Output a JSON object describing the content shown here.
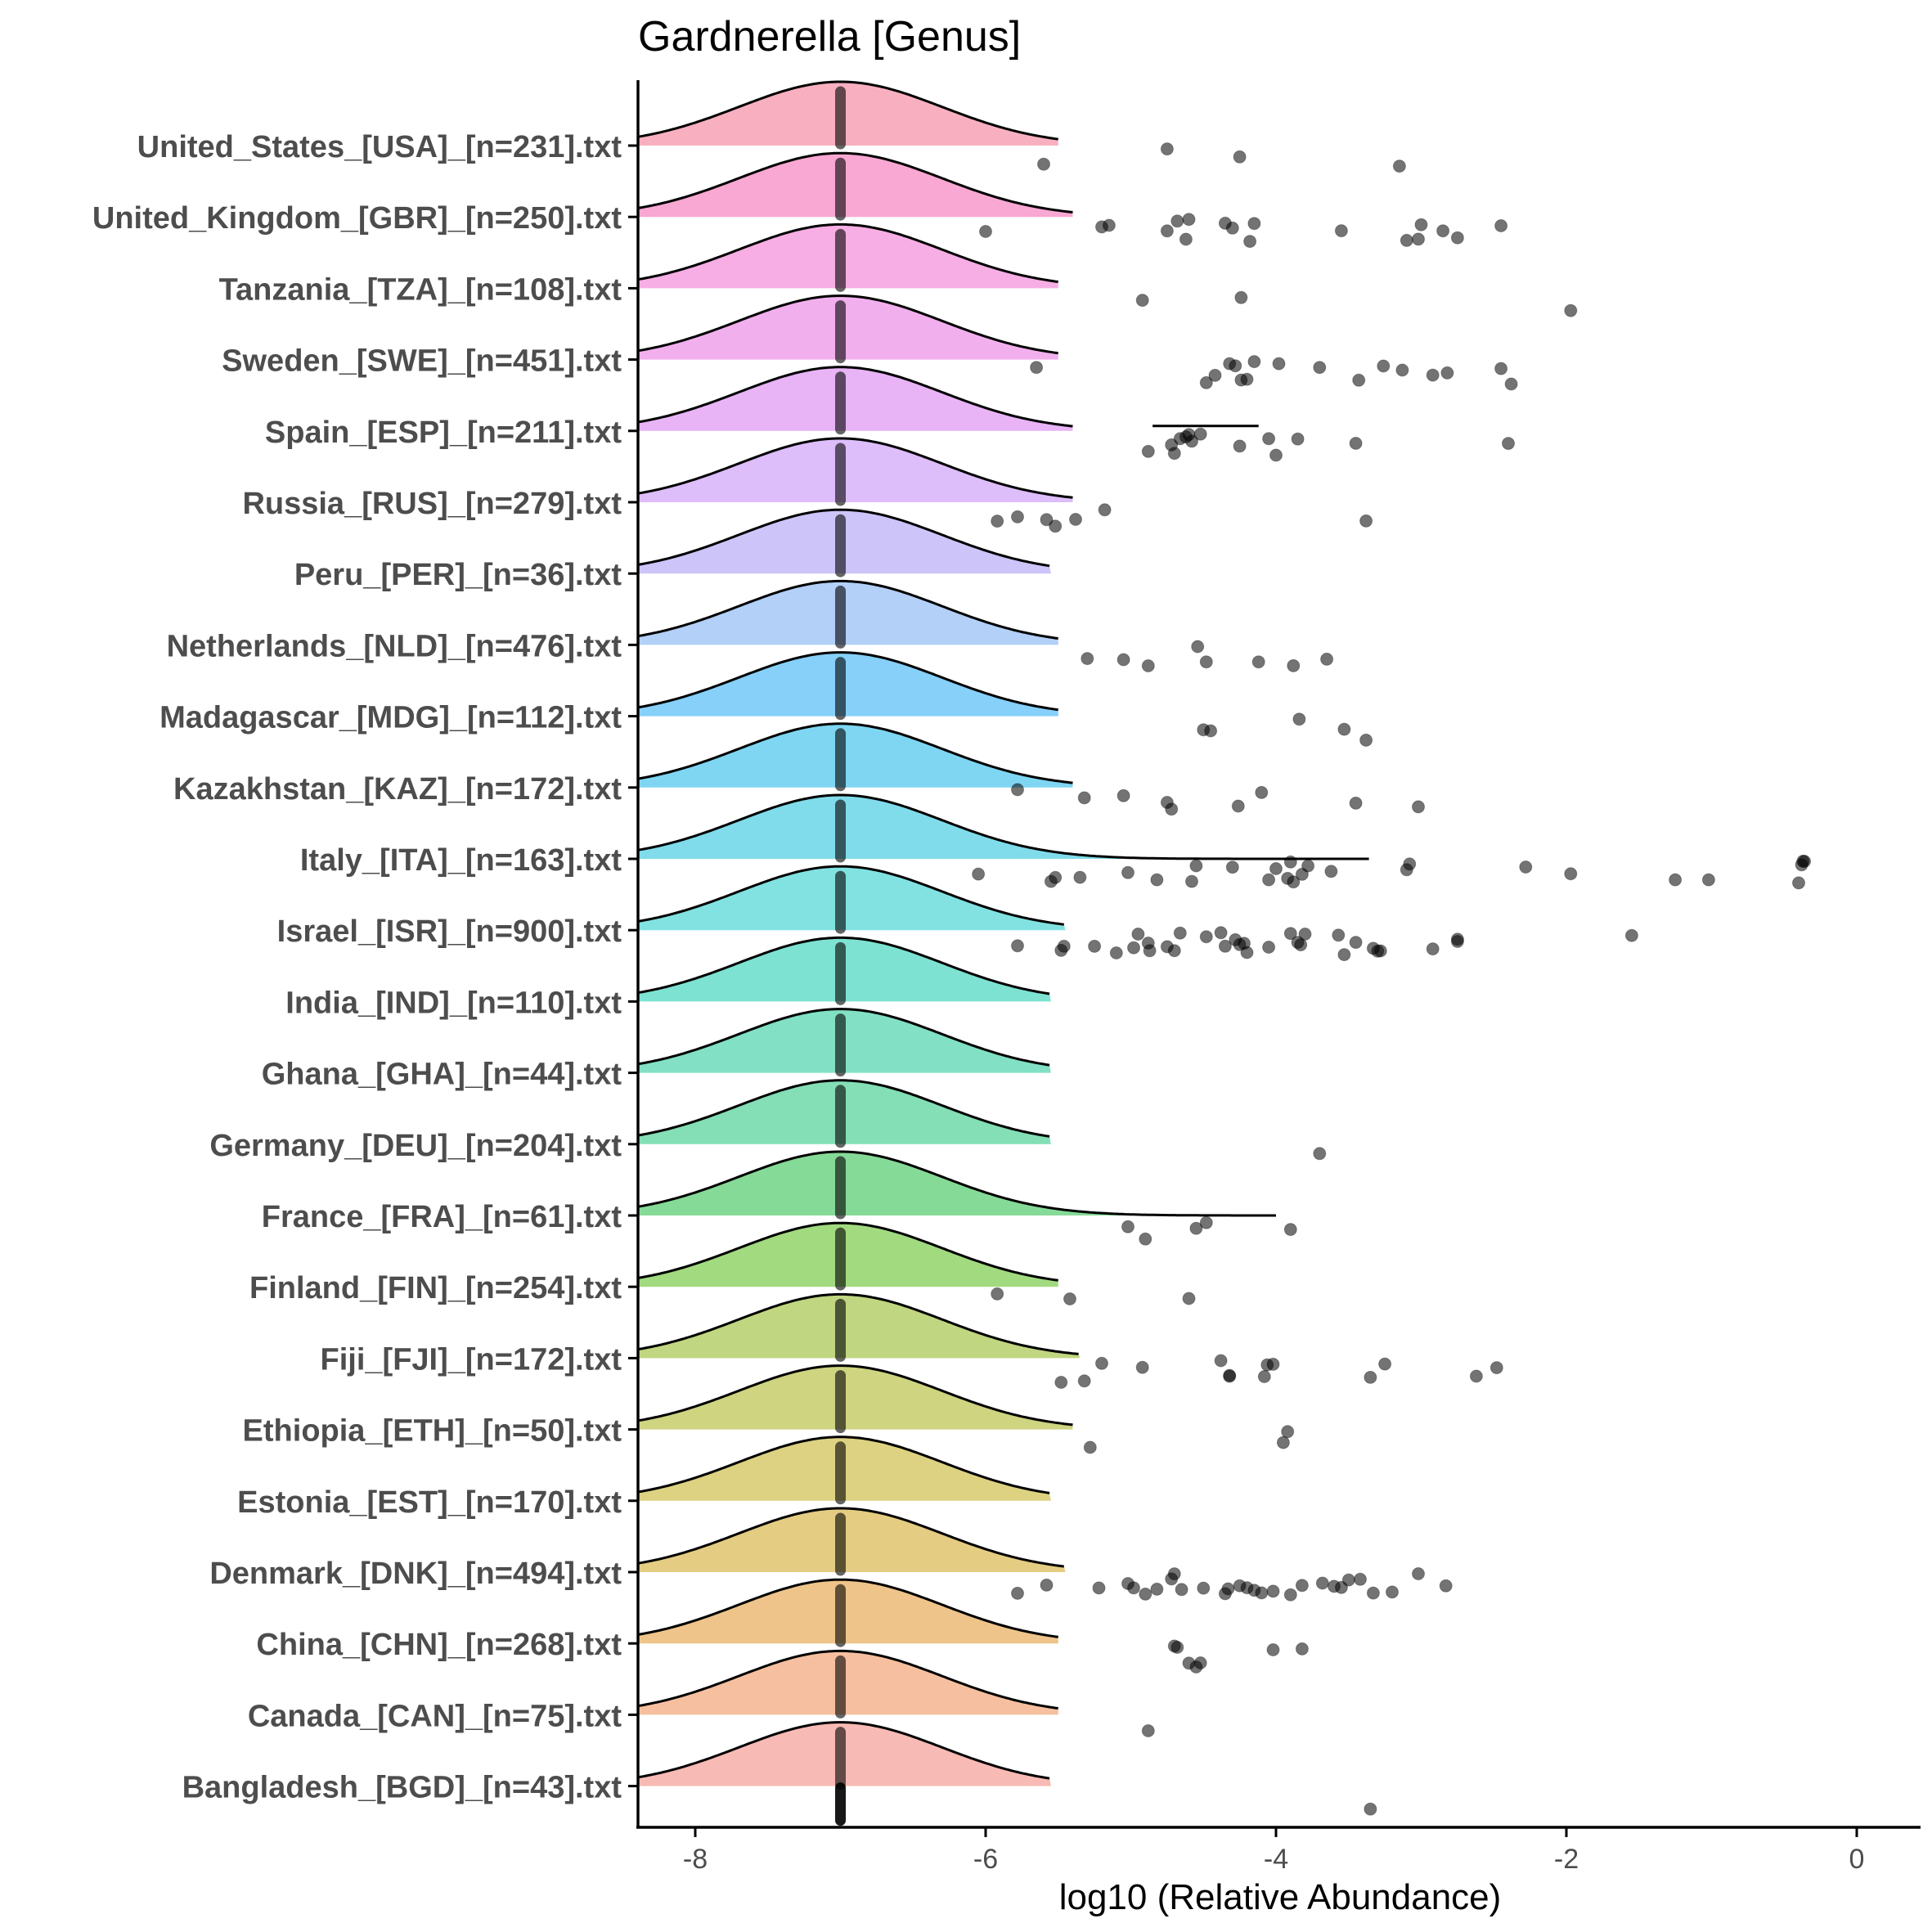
{
  "chart_data": {
    "type": "ridgeline",
    "title": "Gardnerella [Genus]",
    "xlabel": "log10 (Relative Abundance)",
    "ylabel": "",
    "xlim": [
      -8.4,
      0.4
    ],
    "x_ticks": [
      -8,
      -6,
      -4,
      -2,
      0
    ],
    "x_tick_labels": [
      "-8",
      "-6",
      "-4",
      "-2",
      "0"
    ],
    "grid": false,
    "legend": "none",
    "density_center": -7,
    "categories": [
      {
        "label": "United_States_[USA]_[n=231].txt",
        "color": "#F8B0C0",
        "tail_end": -5.5,
        "points": [
          -5.6,
          -4.75,
          -4.25,
          -3.15
        ]
      },
      {
        "label": "United_Kingdom_[GBR]_[n=250].txt",
        "color": "#F8A8D2",
        "tail_end": -5.4,
        "points": [
          -6.0,
          -5.2,
          -5.15,
          -4.75,
          -4.68,
          -4.6,
          -4.62,
          -4.35,
          -4.3,
          -4.18,
          -4.15,
          -3.55,
          -3.1,
          -3.02,
          -3.0,
          -2.85,
          -2.75,
          -2.45
        ]
      },
      {
        "label": "Tanzania_[TZA]_[n=108].txt",
        "color": "#F6AEE4",
        "tail_end": -5.5,
        "points": [
          -4.92,
          -4.24,
          -1.97
        ]
      },
      {
        "label": "Sweden_[SWE]_[n=451].txt",
        "color": "#F2AFEE",
        "tail_end": -5.5,
        "points": [
          -5.65,
          -4.48,
          -4.42,
          -4.32,
          -4.28,
          -4.24,
          -4.2,
          -4.15,
          -3.98,
          -3.7,
          -3.43,
          -3.26,
          -3.13,
          -2.92,
          -2.82,
          -2.45,
          -2.38
        ]
      },
      {
        "label": "Spain_[ESP]_[n=211].txt",
        "color": "#E8B4F6",
        "tail_end": -5.4,
        "points": [
          -4.88,
          -4.72,
          -4.7,
          -4.66,
          -4.62,
          -4.6,
          -4.58,
          -4.52,
          -4.25,
          -4.05,
          -4.0,
          -3.85,
          -3.45,
          -2.4
        ],
        "bar": [
          -4.85,
          -4.12
        ]
      },
      {
        "label": "Russia_[RUS]_[n=279].txt",
        "color": "#DDBDFA",
        "tail_end": -5.4,
        "points": [
          -5.92,
          -5.78,
          -5.58,
          -5.52,
          -5.38,
          -5.18,
          -3.38
        ]
      },
      {
        "label": "Peru_[PER]_[n=36].txt",
        "color": "#CDC5FA",
        "tail_end": -5.55,
        "points": []
      },
      {
        "label": "Netherlands_[NLD]_[n=476].txt",
        "color": "#B2D0F8",
        "tail_end": -5.5,
        "points": [
          -5.3,
          -5.05,
          -4.88,
          -4.54,
          -4.48,
          -4.12,
          -3.88,
          -3.65
        ]
      },
      {
        "label": "Madagascar_[MDG]_[n=112].txt",
        "color": "#86D0FA",
        "tail_end": -5.5,
        "points": [
          -4.5,
          -4.45,
          -3.84,
          -3.53,
          -3.38
        ]
      },
      {
        "label": "Kazakhstan_[KAZ]_[n=172].txt",
        "color": "#7ED6F2",
        "tail_end": -5.4,
        "points": [
          -5.78,
          -5.32,
          -5.05,
          -4.75,
          -4.72,
          -4.26,
          -4.1,
          -3.45,
          -3.02
        ]
      },
      {
        "label": "Italy_[ITA]_[n=163].txt",
        "color": "#80DCEA",
        "tail_end": -3.35,
        "points": [
          -6.05,
          -5.55,
          -5.52,
          -5.35,
          -5.02,
          -4.82,
          -4.58,
          -4.55,
          -4.3,
          -4.05,
          -4.0,
          -3.92,
          -3.9,
          -3.88,
          -3.82,
          -3.78,
          -3.62,
          -3.1,
          -3.08,
          -2.28,
          -1.97,
          -1.25,
          -1.02,
          -0.4,
          -0.38,
          -0.37,
          -0.36
        ]
      },
      {
        "label": "Israel_[ISR]_[n=900].txt",
        "color": "#82E2E2",
        "tail_end": -5.45,
        "points": [
          -5.78,
          -5.48,
          -5.46,
          -5.25,
          -5.1,
          -4.98,
          -4.95,
          -4.88,
          -4.87,
          -4.75,
          -4.7,
          -4.66,
          -4.48,
          -4.38,
          -4.35,
          -4.28,
          -4.25,
          -4.22,
          -4.2,
          -4.05,
          -3.9,
          -3.85,
          -3.83,
          -3.8,
          -3.57,
          -3.53,
          -3.45,
          -3.33,
          -3.3,
          -3.28,
          -2.92,
          -2.75,
          -2.75,
          -1.55
        ]
      },
      {
        "label": "India_[IND]_[n=110].txt",
        "color": "#7EE2D2",
        "tail_end": -5.55,
        "points": []
      },
      {
        "label": "Ghana_[GHA]_[n=44].txt",
        "color": "#82E0C4",
        "tail_end": -5.55,
        "points": []
      },
      {
        "label": "Germany_[DEU]_[n=204].txt",
        "color": "#84DEB6",
        "tail_end": -5.55,
        "points": [
          -3.7
        ]
      },
      {
        "label": "France_[FRA]_[n=61].txt",
        "color": "#86DA98",
        "tail_end": -4.0,
        "points": [
          -5.02,
          -4.9,
          -4.55,
          -4.48,
          -3.9
        ]
      },
      {
        "label": "Finland_[FIN]_[n=254].txt",
        "color": "#A2DA80",
        "tail_end": -5.5,
        "points": [
          -5.92,
          -5.42,
          -4.6
        ]
      },
      {
        "label": "Fiji_[FJI]_[n=172].txt",
        "color": "#C0D680",
        "tail_end": -5.35,
        "points": [
          -5.48,
          -5.32,
          -5.2,
          -4.92,
          -4.38,
          -4.32,
          -4.32,
          -4.08,
          -4.06,
          -4.02,
          -3.35,
          -3.25,
          -2.62,
          -2.48
        ]
      },
      {
        "label": "Ethiopia_[ETH]_[n=50].txt",
        "color": "#CED480",
        "tail_end": -5.4,
        "points": [
          -5.28,
          -3.95,
          -3.92
        ]
      },
      {
        "label": "Estonia_[EST]_[n=170].txt",
        "color": "#DCD282",
        "tail_end": -5.55,
        "points": []
      },
      {
        "label": "Denmark_[DNK]_[n=494].txt",
        "color": "#E4CC82",
        "tail_end": -5.45,
        "points": [
          -5.78,
          -5.58,
          -5.22,
          -5.02,
          -4.98,
          -4.9,
          -4.82,
          -4.72,
          -4.7,
          -4.65,
          -4.5,
          -4.35,
          -4.33,
          -4.25,
          -4.2,
          -4.15,
          -4.1,
          -4.02,
          -3.9,
          -3.82,
          -3.68,
          -3.6,
          -3.55,
          -3.5,
          -3.42,
          -3.33,
          -3.2,
          -3.02,
          -2.83
        ]
      },
      {
        "label": "China_[CHN]_[n=268].txt",
        "color": "#EEC48A",
        "tail_end": -5.5,
        "points": [
          -4.7,
          -4.68,
          -4.6,
          -4.55,
          -4.52,
          -4.02,
          -3.82
        ]
      },
      {
        "label": "Canada_[CAN]_[n=75].txt",
        "color": "#F6C0A0",
        "tail_end": -5.5,
        "points": [
          -4.88
        ]
      },
      {
        "label": "Bangladesh_[BGD]_[n=43].txt",
        "color": "#F8BAB4",
        "tail_end": -5.55,
        "points": [
          -3.35
        ]
      }
    ]
  }
}
